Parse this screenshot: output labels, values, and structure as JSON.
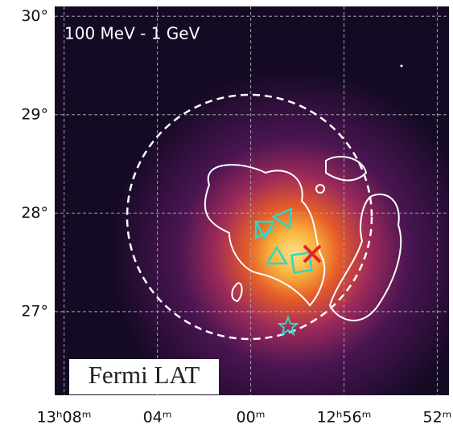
{
  "chart_data": {
    "type": "skymap",
    "energy_label": "100 MeV - 1 GeV",
    "instrument_label": "Fermi LAT",
    "xlim": [
      788.4,
      771.5
    ],
    "xticks": [
      {
        "value": 788,
        "label": "13ʰ08ᵐ"
      },
      {
        "value": 784,
        "label": "04ᵐ"
      },
      {
        "value": 780,
        "label": "00ᵐ"
      },
      {
        "value": 776,
        "label": "12ʰ56ᵐ"
      },
      {
        "value": 772,
        "label": "52ᵐ"
      }
    ],
    "ylim": [
      26.15,
      30.1
    ],
    "yticks": [
      {
        "value": 27,
        "label": "27°"
      },
      {
        "value": 28,
        "label": "28°"
      },
      {
        "value": 29,
        "label": "29°"
      },
      {
        "value": 30,
        "label": "30°"
      }
    ],
    "grid": true
  }
}
